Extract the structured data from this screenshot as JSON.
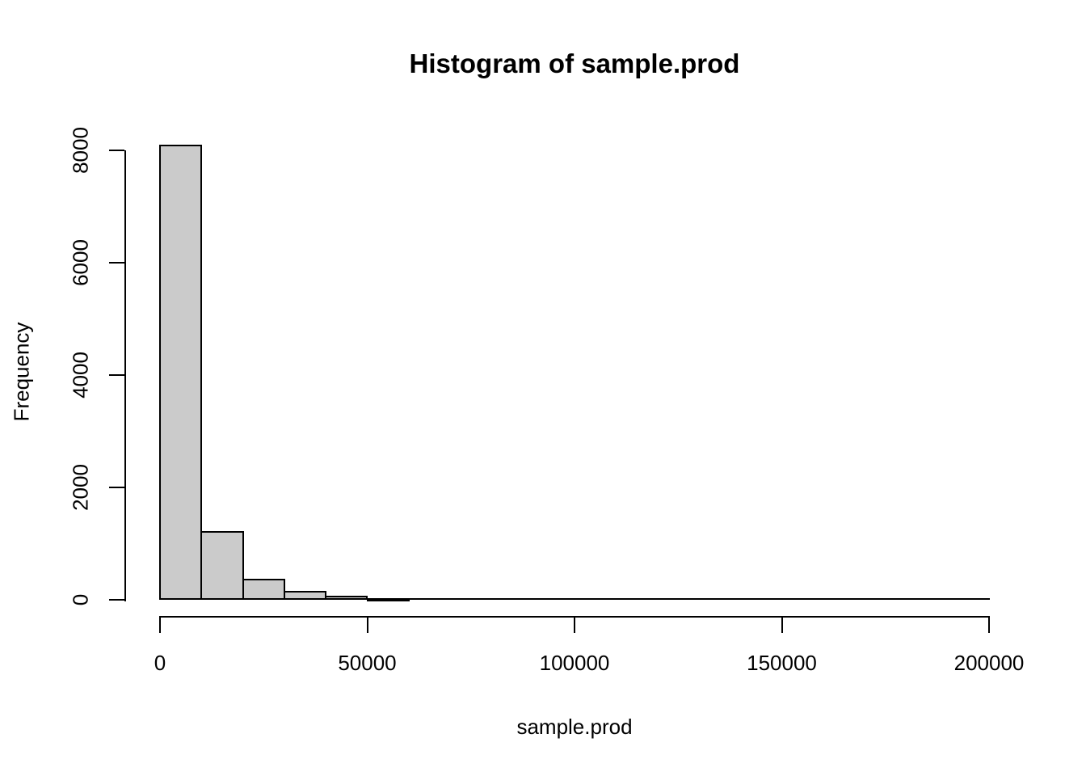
{
  "chart_data": {
    "type": "bar",
    "subtype": "histogram",
    "title": "Histogram of sample.prod",
    "xlabel": "sample.prod",
    "ylabel": "Frequency",
    "bin_width": 10000,
    "bin_edges": [
      0,
      10000,
      20000,
      30000,
      40000,
      50000,
      60000,
      70000,
      80000,
      90000,
      100000,
      110000,
      120000,
      130000,
      140000,
      150000,
      160000,
      170000,
      180000,
      190000,
      200000
    ],
    "counts": [
      8100,
      1220,
      375,
      160,
      70,
      35,
      12,
      6,
      3,
      2,
      1,
      1,
      1,
      0,
      0,
      1,
      0,
      0,
      0,
      1
    ],
    "xlim": [
      0,
      200000
    ],
    "ylim": [
      0,
      8000
    ],
    "x_ticks": [
      {
        "value": 0,
        "label": "0"
      },
      {
        "value": 50000,
        "label": "50000"
      },
      {
        "value": 100000,
        "label": "100000"
      },
      {
        "value": 150000,
        "label": "150000"
      },
      {
        "value": 200000,
        "label": "200000"
      }
    ],
    "y_ticks": [
      {
        "value": 0,
        "label": "0"
      },
      {
        "value": 2000,
        "label": "2000"
      },
      {
        "value": 4000,
        "label": "4000"
      },
      {
        "value": 6000,
        "label": "6000"
      },
      {
        "value": 8000,
        "label": "8000"
      }
    ],
    "bar_fill": "#cbcbcb",
    "bar_border": "#000000",
    "axis_color": "#000000",
    "text_color": "#000000",
    "background": "#ffffff",
    "grid": false,
    "legend": false
  }
}
